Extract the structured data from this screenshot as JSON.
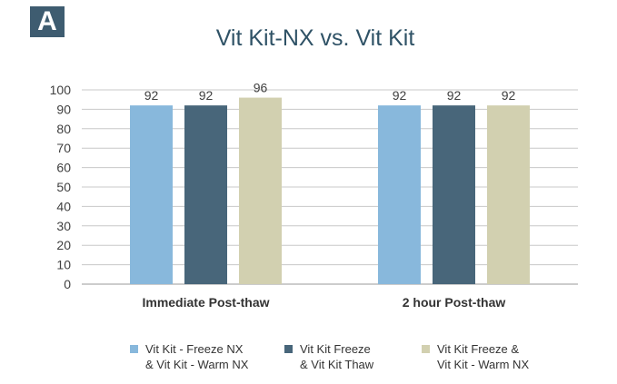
{
  "panel_label": "A",
  "chart_data": {
    "type": "bar",
    "title": "Vit Kit-NX vs. Vit Kit",
    "xlabel": "",
    "ylabel": "",
    "ylim": [
      0,
      100
    ],
    "yticks": [
      0,
      10,
      20,
      30,
      40,
      50,
      60,
      70,
      80,
      90,
      100
    ],
    "grid": true,
    "legend_position": "bottom",
    "categories": [
      "Immediate Post-thaw",
      "2 hour Post-thaw"
    ],
    "series": [
      {
        "name": "Vit Kit - Freeze NX & Vit Kit - Warm NX",
        "legend_lines": [
          "Vit Kit - Freeze NX",
          "& Vit Kit - Warm NX"
        ],
        "color": "#88b8dc",
        "values": [
          92,
          92
        ]
      },
      {
        "name": "Vit Kit Freeze & Vit Kit Thaw",
        "legend_lines": [
          "Vit Kit Freeze",
          "& Vit Kit Thaw"
        ],
        "color": "#48667a",
        "values": [
          92,
          92
        ]
      },
      {
        "name": "Vit Kit Freeze & Vit Kit - Warm NX",
        "legend_lines": [
          "Vit Kit Freeze &",
          "Vit Kit - Warm NX"
        ],
        "color": "#d2d0b0",
        "values": [
          96,
          92
        ]
      }
    ]
  }
}
